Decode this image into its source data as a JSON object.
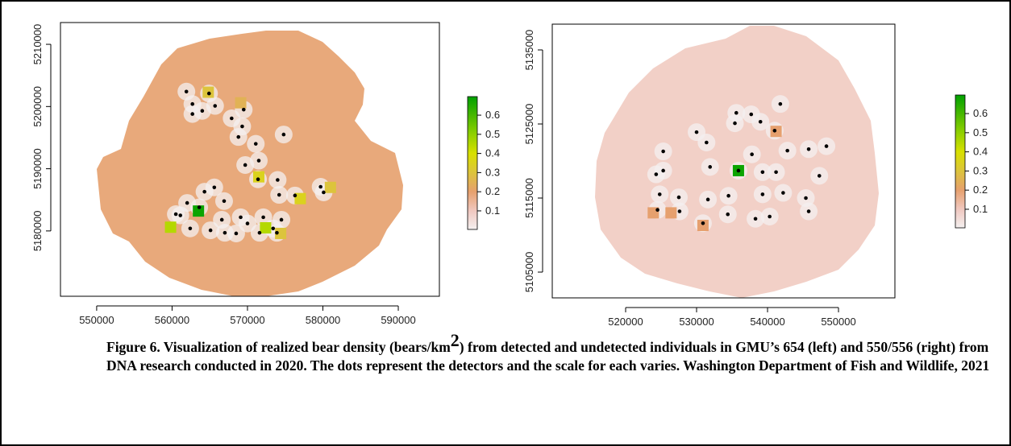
{
  "chart_data": [
    {
      "type": "raster-map",
      "background_color": "#e8a97b",
      "xlim": [
        545200,
        595450
      ],
      "ylim": [
        5169500,
        5213500
      ],
      "xticks": [
        550000,
        560000,
        570000,
        580000,
        590000
      ],
      "yticks": [
        5180000,
        5190000,
        5200000,
        5210000
      ],
      "detectors": {
        "x": [
          561900,
          564900,
          562700,
          564000,
          562700,
          565700,
          569500,
          567900,
          569300,
          568800,
          574800,
          571100,
          571500,
          569700,
          574000,
          571400,
          574200,
          576300,
          579700,
          580100,
          564300,
          565600,
          566900,
          562000,
          563600,
          560500,
          561100,
          566600,
          569100,
          572100,
          574500,
          570000,
          562400,
          565100,
          567000,
          568500,
          571600,
          573400,
          573900
        ],
        "y": [
          5202400,
          5202100,
          5200400,
          5199300,
          5198800,
          5200100,
          5199500,
          5198100,
          5196800,
          5195100,
          5195500,
          5194000,
          5191300,
          5190600,
          5188200,
          5188300,
          5185800,
          5185700,
          5187100,
          5186200,
          5186300,
          5187000,
          5184800,
          5184500,
          5183800,
          5182700,
          5182500,
          5181800,
          5182200,
          5182200,
          5181800,
          5181200,
          5180400,
          5180100,
          5179700,
          5179600,
          5179700,
          5180400,
          5179700
        ]
      },
      "cells": {
        "x": [
          563500,
          559800,
          572400,
          571500,
          577000,
          581000,
          564800,
          569100,
          574400
        ],
        "y": [
          5183200,
          5180600,
          5180500,
          5188700,
          5185200,
          5187000,
          5202300,
          5200600,
          5179600
        ],
        "density": [
          0.68,
          0.45,
          0.45,
          0.35,
          0.35,
          0.3,
          0.3,
          0.25,
          0.3
        ]
      },
      "colorbar": {
        "lim": [
          0.003,
          0.697
        ],
        "ticks": [
          0.1,
          0.2,
          0.3,
          0.4,
          0.5,
          0.6
        ],
        "colormap": [
          {
            "value": 0.003,
            "color": "#f4f0f0"
          },
          {
            "value": 0.1,
            "color": "#f0c8c0"
          },
          {
            "value": 0.2,
            "color": "#e6a06e"
          },
          {
            "value": 0.3,
            "color": "#dcc43c"
          },
          {
            "value": 0.4,
            "color": "#d8e000"
          },
          {
            "value": 0.5,
            "color": "#90d000"
          },
          {
            "value": 0.697,
            "color": "#00a000"
          }
        ]
      }
    },
    {
      "type": "raster-map",
      "background_color": "#f2d0c7",
      "xlim": [
        509660,
        557950
      ],
      "ylim": [
        5101520,
        5138480
      ],
      "xticks": [
        520000,
        530000,
        540000,
        550000
      ],
      "yticks": [
        5105000,
        5115000,
        5125000,
        5135000
      ],
      "detectors": {
        "x": [
          541800,
          535600,
          537700,
          535400,
          539000,
          530000,
          541000,
          531400,
          525300,
          548300,
          545800,
          542800,
          537800,
          531900,
          535900,
          525300,
          539300,
          541200,
          547300,
          524300,
          524800,
          527500,
          531600,
          534500,
          539300,
          542200,
          545400,
          524500,
          527600,
          545800,
          534400,
          540300,
          538300,
          530900
        ],
        "y": [
          5127700,
          5126500,
          5126300,
          5125100,
          5125300,
          5123900,
          5124100,
          5122500,
          5121300,
          5122000,
          5121600,
          5121400,
          5120900,
          5119200,
          5118700,
          5118700,
          5118500,
          5118500,
          5118000,
          5118200,
          5115500,
          5115100,
          5114800,
          5115300,
          5115500,
          5115700,
          5115000,
          5113400,
          5113200,
          5113200,
          5112800,
          5112500,
          5112200,
          5111600
        ]
      },
      "cells": {
        "x": [
          535900,
          541200,
          526400,
          523900,
          530900
        ],
        "y": [
          5118700,
          5124000,
          5113000,
          5113000,
          5111300
        ],
        "density": [
          0.68,
          0.2,
          0.2,
          0.2,
          0.2
        ]
      },
      "colorbar": {
        "lim": [
          0.003,
          0.697
        ],
        "ticks": [
          0.1,
          0.2,
          0.3,
          0.4,
          0.5,
          0.6
        ],
        "colormap": [
          {
            "value": 0.003,
            "color": "#f4f0f0"
          },
          {
            "value": 0.1,
            "color": "#f0c8c0"
          },
          {
            "value": 0.2,
            "color": "#e6a06e"
          },
          {
            "value": 0.3,
            "color": "#dcc43c"
          },
          {
            "value": 0.4,
            "color": "#d8e000"
          },
          {
            "value": 0.5,
            "color": "#90d000"
          },
          {
            "value": 0.697,
            "color": "#00a000"
          }
        ]
      }
    }
  ],
  "caption": {
    "text_1": "Figure 6. Visualization of realized bear density (bears/km",
    "superscript": "2",
    "text_2": ") from detected and undetected individuals in GMU’s 654 (left) and 550/556 (right) from DNA research conducted in 2020. The dots represent the detectors and the scale for each varies.  Washington Department of Fish and Wildlife, 2021"
  }
}
